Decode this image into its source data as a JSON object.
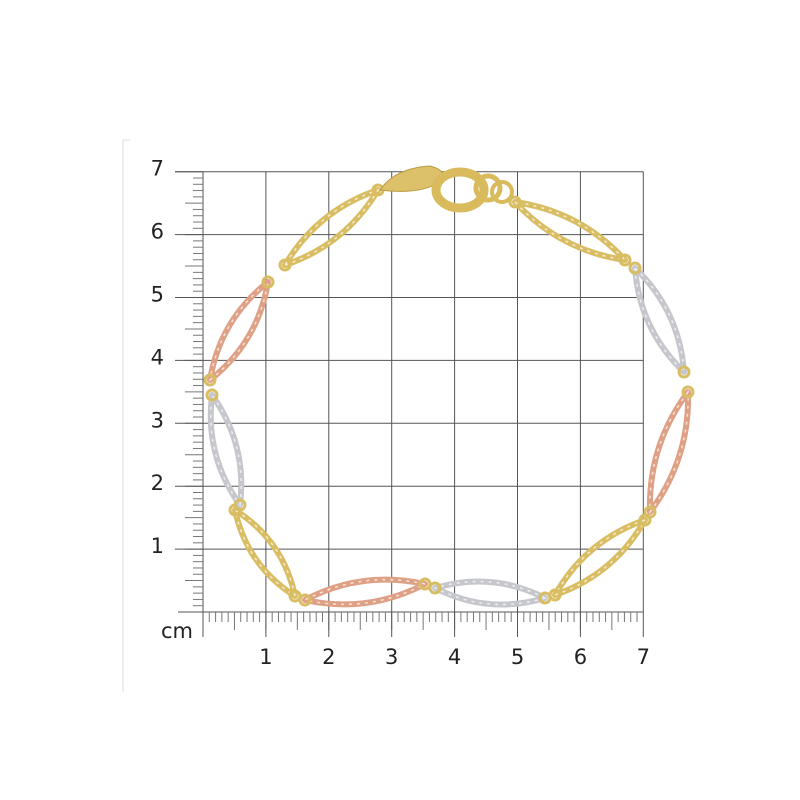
{
  "scale": {
    "unit": "cm",
    "x_ticks": [
      1,
      2,
      3,
      4,
      5,
      6,
      7
    ],
    "y_ticks": [
      1,
      2,
      3,
      4,
      5,
      6,
      7
    ]
  }
}
